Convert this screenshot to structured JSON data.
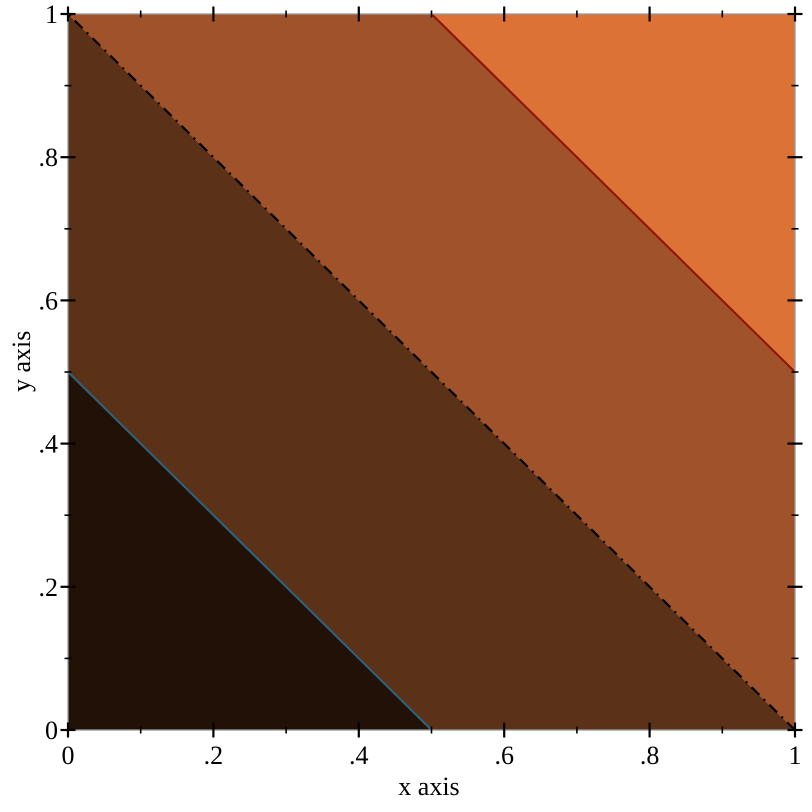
{
  "figure": {
    "background": "#ffffff",
    "frame_color": "#949a9e"
  },
  "chart_data": {
    "type": "heatmap",
    "subtype": "filled-contour-intervals",
    "function": "z(x,y) = x + y",
    "title": "",
    "xlabel": "x axis",
    "ylabel": "y axis",
    "x_range": [
      0,
      1
    ],
    "y_range": [
      0,
      1
    ],
    "z_range": [
      0,
      2
    ],
    "levels": [
      0,
      0.5,
      1,
      1.5,
      2
    ],
    "grid": false,
    "legend_position": "none",
    "x_major_ticks": [
      {
        "v": 0,
        "label": "0"
      },
      {
        "v": 0.2,
        "label": ".2"
      },
      {
        "v": 0.4,
        "label": ".4"
      },
      {
        "v": 0.6,
        "label": ".6"
      },
      {
        "v": 0.8,
        "label": ".8"
      },
      {
        "v": 1,
        "label": "1"
      }
    ],
    "x_minor_ticks": [
      0.1,
      0.3,
      0.5,
      0.7,
      0.9
    ],
    "y_major_ticks": [
      {
        "v": 0,
        "label": "0"
      },
      {
        "v": 0.2,
        "label": ".2"
      },
      {
        "v": 0.4,
        "label": ".4"
      },
      {
        "v": 0.6,
        "label": ".6"
      },
      {
        "v": 0.8,
        "label": ".8"
      },
      {
        "v": 1,
        "label": "1"
      }
    ],
    "y_minor_ticks": [
      0.1,
      0.3,
      0.5,
      0.7,
      0.9
    ],
    "bands": [
      {
        "z_min": 0,
        "z_max": 0.5,
        "color": "#211107"
      },
      {
        "z_min": 0.5,
        "z_max": 1,
        "color": "#5b3218"
      },
      {
        "z_min": 1,
        "z_max": 1.5,
        "color": "#a0522a"
      },
      {
        "z_min": 1.5,
        "z_max": 2,
        "color": "#dd7236"
      }
    ],
    "contour_lines": [
      {
        "level": 0.5,
        "color": "#2b6480",
        "style": "solid",
        "width": 2,
        "dasharray": ""
      },
      {
        "level": 1,
        "color": "#000000",
        "style": "dash-dot",
        "width": 2.2,
        "dasharray": "11 6 2 6"
      },
      {
        "level": 1.5,
        "color": "#8e1305",
        "style": "solid",
        "width": 2,
        "dasharray": ""
      }
    ]
  }
}
